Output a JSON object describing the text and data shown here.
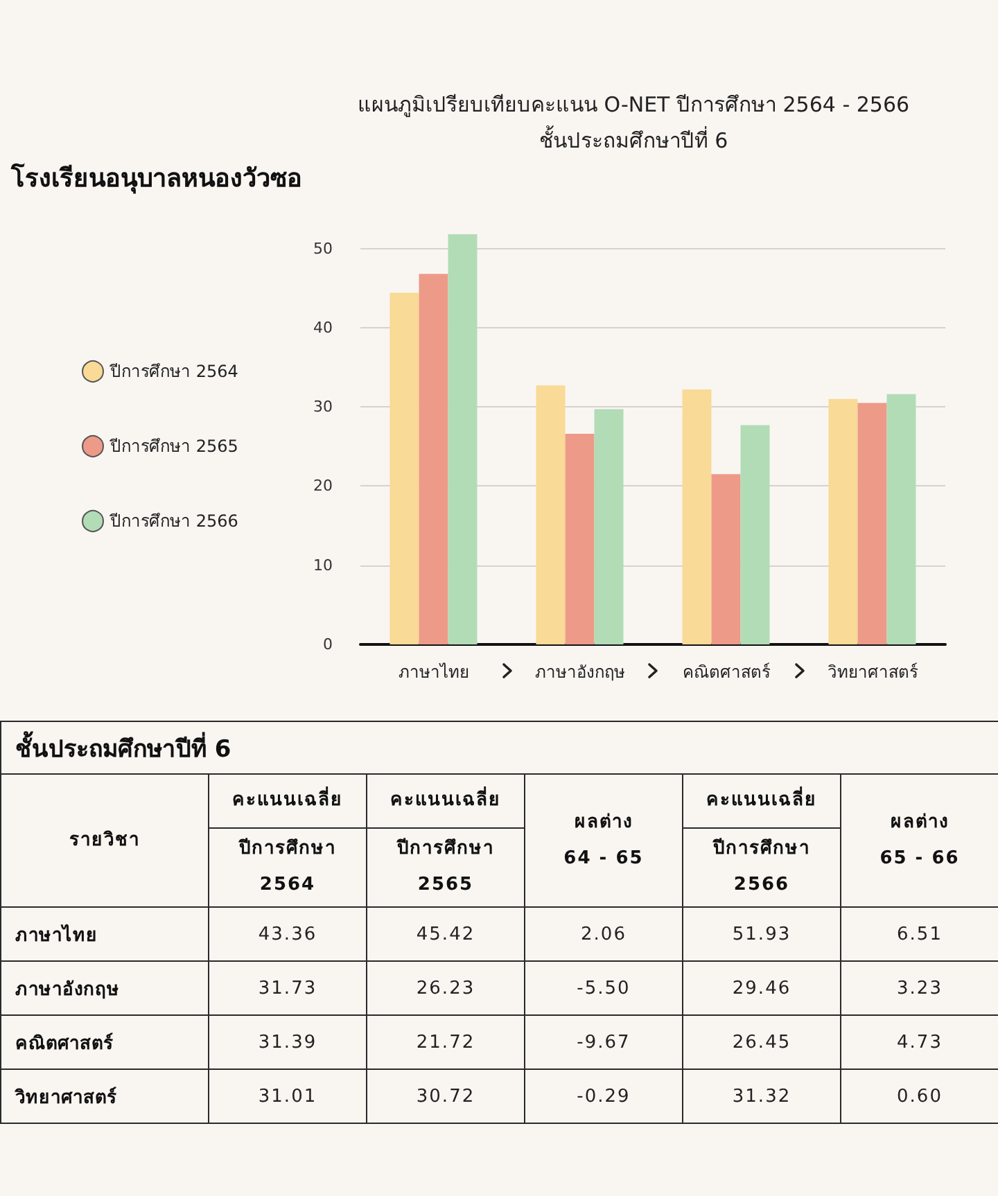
{
  "chart_data": [
    {
      "type": "bar",
      "title": "แผนภูมิเปรียบเทียบคะแนน O-NET ปีการศึกษา 2564 - 2566",
      "subtitle": "ชั้นประถมศึกษาปีที่ 6",
      "annotations": [
        "โรงเรียนอนุบาลหนองวัวซอ"
      ],
      "categories": [
        "ภาษาไทย",
        "ภาษาอังกฤษ",
        "คณิตศาสตร์",
        "วิทยาศาสตร์"
      ],
      "series": [
        {
          "name": "ปีการศึกษา 2564",
          "color": "#f9da96",
          "values": [
            44.4,
            32.7,
            32.2,
            31.0
          ]
        },
        {
          "name": "ปีการศึกษา 2565",
          "color": "#ee9a88",
          "values": [
            46.8,
            26.6,
            21.5,
            30.5
          ]
        },
        {
          "name": "ปีการศึกษา 2566",
          "color": "#b2dcb6",
          "values": [
            51.8,
            29.7,
            27.7,
            31.6
          ]
        }
      ],
      "ylim": [
        0,
        51.8
      ],
      "yticks": [
        0,
        10,
        20,
        30,
        40,
        50
      ],
      "grid": "y",
      "legend": "left"
    },
    {
      "type": "other",
      "title": "ชั้นประถมศึกษาปีที่ 6",
      "xlabel": "รายวิชา",
      "categories": [
        "ภาษาไทย",
        "ภาษาอังกฤษ",
        "คณิตศาสตร์",
        "วิทยาศาสตร์"
      ],
      "series": [
        {
          "name": "คะแนนเฉลี่ย\nปีการศึกษา\n2564",
          "values": [
            43.36,
            31.73,
            31.39,
            31.01
          ]
        },
        {
          "name": "คะแนนเฉลี่ย\nปีการศึกษา\n2565",
          "values": [
            45.42,
            26.23,
            21.72,
            30.72
          ]
        },
        {
          "name": "ผลต่าง\n64 - 65",
          "values": [
            2.06,
            -5.5,
            -9.67,
            -0.29
          ],
          "value_labels": [
            "2.06",
            "-5.50",
            "-9.67",
            "-0.29"
          ]
        },
        {
          "name": "คะแนนเฉลี่ย\nปีการศึกษา\n2566",
          "values": [
            51.93,
            29.46,
            26.45,
            31.32
          ]
        },
        {
          "name": "ผลต่าง\n65 - 66",
          "values": [
            6.51,
            3.23,
            4.73,
            0.6
          ],
          "value_labels": [
            "6.51",
            "3.23",
            "4.73",
            "0.60"
          ]
        }
      ],
      "data_labels": true
    }
  ]
}
